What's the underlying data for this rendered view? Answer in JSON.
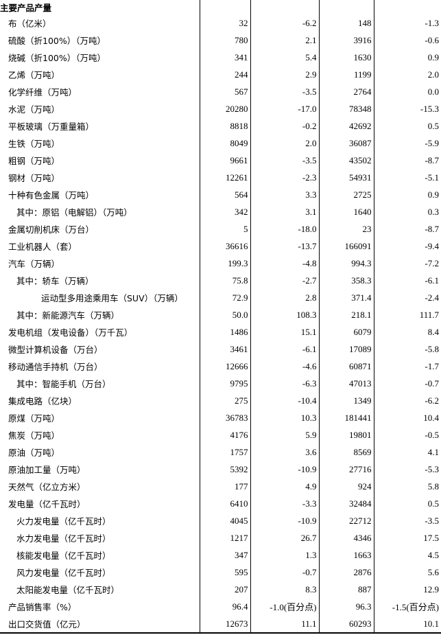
{
  "section_title": "主要产品产量",
  "rows": [
    {
      "label": "布（亿米）",
      "indent": 0,
      "v": [
        "32",
        "-6.2",
        "148",
        "-1.3"
      ]
    },
    {
      "label": "硫酸（折100%）（万吨）",
      "indent": 0,
      "v": [
        "780",
        "2.1",
        "3916",
        "-0.6"
      ]
    },
    {
      "label": "烧碱（折100%）（万吨）",
      "indent": 0,
      "v": [
        "341",
        "5.4",
        "1630",
        "0.9"
      ]
    },
    {
      "label": "乙烯（万吨）",
      "indent": 0,
      "v": [
        "244",
        "2.9",
        "1199",
        "2.0"
      ]
    },
    {
      "label": "化学纤维（万吨）",
      "indent": 0,
      "v": [
        "567",
        "-3.5",
        "2764",
        "0.0"
      ]
    },
    {
      "label": "水泥（万吨）",
      "indent": 0,
      "v": [
        "20280",
        "-17.0",
        "78348",
        "-15.3"
      ]
    },
    {
      "label": "平板玻璃（万重量箱）",
      "indent": 0,
      "v": [
        "8818",
        "-0.2",
        "42692",
        "0.5"
      ]
    },
    {
      "label": "生铁（万吨）",
      "indent": 0,
      "v": [
        "8049",
        "2.0",
        "36087",
        "-5.9"
      ]
    },
    {
      "label": "粗钢（万吨）",
      "indent": 0,
      "v": [
        "9661",
        "-3.5",
        "43502",
        "-8.7"
      ]
    },
    {
      "label": "钢材（万吨）",
      "indent": 0,
      "v": [
        "12261",
        "-2.3",
        "54931",
        "-5.1"
      ]
    },
    {
      "label": "十种有色金属（万吨）",
      "indent": 0,
      "v": [
        "564",
        "3.3",
        "2725",
        "0.9"
      ]
    },
    {
      "label": "其中：原铝（电解铝）（万吨）",
      "indent": 1,
      "v": [
        "342",
        "3.1",
        "1640",
        "0.3"
      ]
    },
    {
      "label": "金属切削机床（万台）",
      "indent": 0,
      "v": [
        "5",
        "-18.0",
        "23",
        "-8.7"
      ]
    },
    {
      "label": "工业机器人（套）",
      "indent": 0,
      "v": [
        "36616",
        "-13.7",
        "166091",
        "-9.4"
      ]
    },
    {
      "label": "汽车（万辆）",
      "indent": 0,
      "v": [
        "199.3",
        "-4.8",
        "994.3",
        "-7.2"
      ]
    },
    {
      "label": "其中：轿车（万辆）",
      "indent": 1,
      "v": [
        "75.8",
        "-2.7",
        "358.3",
        "-6.1"
      ]
    },
    {
      "label": "运动型多用途乘用车（SUV）（万辆）",
      "indent": 2,
      "v": [
        "72.9",
        "2.8",
        "371.4",
        "-2.4"
      ]
    },
    {
      "label": "其中：新能源汽车（万辆）",
      "indent": 1,
      "v": [
        "50.0",
        "108.3",
        "218.1",
        "111.7"
      ]
    },
    {
      "label": "发电机组（发电设备）（万千瓦）",
      "indent": 0,
      "v": [
        "1486",
        "15.1",
        "6079",
        "8.4"
      ]
    },
    {
      "label": "微型计算机设备（万台）",
      "indent": 0,
      "v": [
        "3461",
        "-6.1",
        "17089",
        "-5.8"
      ]
    },
    {
      "label": "移动通信手持机（万台）",
      "indent": 0,
      "v": [
        "12666",
        "-4.6",
        "60871",
        "-1.7"
      ]
    },
    {
      "label": "其中：智能手机（万台）",
      "indent": 1,
      "v": [
        "9795",
        "-6.3",
        "47013",
        "-0.7"
      ]
    },
    {
      "label": "集成电路（亿块）",
      "indent": 0,
      "v": [
        "275",
        "-10.4",
        "1349",
        "-6.2"
      ]
    },
    {
      "label": "原煤（万吨）",
      "indent": 0,
      "v": [
        "36783",
        "10.3",
        "181441",
        "10.4"
      ]
    },
    {
      "label": "焦炭（万吨）",
      "indent": 0,
      "v": [
        "4176",
        "5.9",
        "19801",
        "-0.5"
      ]
    },
    {
      "label": "原油（万吨）",
      "indent": 0,
      "v": [
        "1757",
        "3.6",
        "8569",
        "4.1"
      ]
    },
    {
      "label": "原油加工量（万吨）",
      "indent": 0,
      "v": [
        "5392",
        "-10.9",
        "27716",
        "-5.3"
      ]
    },
    {
      "label": "天然气（亿立方米）",
      "indent": 0,
      "v": [
        "177",
        "4.9",
        "924",
        "5.8"
      ]
    },
    {
      "label": "发电量（亿千瓦时）",
      "indent": 0,
      "v": [
        "6410",
        "-3.3",
        "32484",
        "0.5"
      ]
    },
    {
      "label": "火力发电量（亿千瓦时）",
      "indent": 1,
      "v": [
        "4045",
        "-10.9",
        "22712",
        "-3.5"
      ]
    },
    {
      "label": "水力发电量（亿千瓦时）",
      "indent": 1,
      "v": [
        "1217",
        "26.7",
        "4346",
        "17.5"
      ]
    },
    {
      "label": "核能发电量（亿千瓦时）",
      "indent": 1,
      "v": [
        "347",
        "1.3",
        "1663",
        "4.5"
      ]
    },
    {
      "label": "风力发电量（亿千瓦时）",
      "indent": 1,
      "v": [
        "595",
        "-0.7",
        "2876",
        "5.6"
      ]
    },
    {
      "label": "太阳能发电量（亿千瓦时）",
      "indent": 1,
      "v": [
        "207",
        "8.3",
        "887",
        "12.9"
      ]
    },
    {
      "label": "产品销售率（%）",
      "indent": 0,
      "v": [
        "96.4",
        "-1.0(百分点)",
        "96.3",
        "-1.5(百分点)"
      ]
    },
    {
      "label": "出口交货值（亿元）",
      "indent": 0,
      "v": [
        "12673",
        "11.1",
        "60293",
        "10.1"
      ]
    }
  ]
}
